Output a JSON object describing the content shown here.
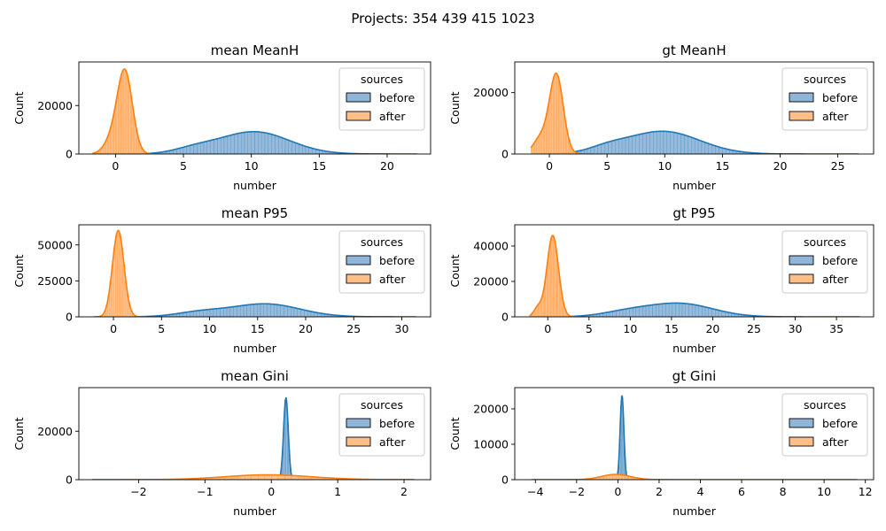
{
  "figure": {
    "suptitle": "Projects: 354 439 415 1023",
    "colors": {
      "before": "#1f77b4",
      "after": "#ff7f0e",
      "before_fill": "#8fb6d9",
      "after_fill": "#ffbf86"
    }
  },
  "chart_data": [
    {
      "type": "histogram",
      "title": "mean MeanH",
      "xlabel": "number",
      "ylabel": "Count",
      "xlim": [
        -2.7,
        23.2
      ],
      "ylim": [
        0,
        38000
      ],
      "xticks": [
        0,
        5,
        10,
        15,
        20
      ],
      "yticks": [
        0,
        20000
      ],
      "legend": {
        "title": "sources",
        "entries": [
          "before",
          "after"
        ],
        "placement": "top-right"
      },
      "series": [
        {
          "name": "before",
          "components": [
            {
              "mu": 10.2,
              "sigma": 2.6,
              "peak": 9200
            },
            {
              "mu": 5.8,
              "sigma": 1.5,
              "peak": 1800
            }
          ],
          "range": [
            -1.5,
            22.2
          ],
          "bin_width": 0.25
        },
        {
          "name": "after",
          "components": [
            {
              "mu": 0.7,
              "sigma": 0.55,
              "peak": 33000
            },
            {
              "mu": -0.2,
              "sigma": 0.6,
              "peak": 6000
            }
          ],
          "range": [
            -1.7,
            3.3
          ],
          "bin_width": 0.1
        }
      ]
    },
    {
      "type": "histogram",
      "title": "gt MeanH",
      "xlabel": "number",
      "ylabel": "Count",
      "xlim": [
        -3.0,
        28.1
      ],
      "ylim": [
        0,
        30000
      ],
      "xticks": [
        0,
        5,
        10,
        15,
        20,
        25
      ],
      "yticks": [
        0,
        20000
      ],
      "legend": {
        "title": "sources",
        "entries": [
          "before",
          "after"
        ],
        "placement": "top-right"
      },
      "series": [
        {
          "name": "before",
          "components": [
            {
              "mu": 9.8,
              "sigma": 3.2,
              "peak": 7400
            },
            {
              "mu": 5.0,
              "sigma": 1.6,
              "peak": 1400
            }
          ],
          "range": [
            -1.5,
            26.8
          ],
          "bin_width": 0.3
        },
        {
          "name": "after",
          "components": [
            {
              "mu": 0.6,
              "sigma": 0.6,
              "peak": 26000
            },
            {
              "mu": -0.8,
              "sigma": 0.6,
              "peak": 5000
            }
          ],
          "range": [
            -1.6,
            3.8
          ],
          "bin_width": 0.12
        }
      ]
    },
    {
      "type": "histogram",
      "title": "mean P95",
      "xlabel": "number",
      "ylabel": "Count",
      "xlim": [
        -3.6,
        33.0
      ],
      "ylim": [
        0,
        64000
      ],
      "xticks": [
        0,
        5,
        10,
        15,
        20,
        25,
        30
      ],
      "yticks": [
        0,
        25000,
        50000
      ],
      "legend": {
        "title": "sources",
        "entries": [
          "before",
          "after"
        ],
        "placement": "top-right"
      },
      "series": [
        {
          "name": "before",
          "components": [
            {
              "mu": 15.8,
              "sigma": 3.6,
              "peak": 9000
            },
            {
              "mu": 9.0,
              "sigma": 2.5,
              "peak": 3000
            }
          ],
          "range": [
            2.0,
            31.5
          ],
          "bin_width": 0.35
        },
        {
          "name": "after",
          "components": [
            {
              "mu": 0.5,
              "sigma": 0.6,
              "peak": 60000
            }
          ],
          "range": [
            -2.0,
            3.5
          ],
          "bin_width": 0.2
        }
      ]
    },
    {
      "type": "histogram",
      "title": "gt P95",
      "xlabel": "number",
      "ylabel": "Count",
      "xlim": [
        -4.0,
        39.5
      ],
      "ylim": [
        0,
        52000
      ],
      "xticks": [
        0,
        5,
        10,
        15,
        20,
        25,
        30,
        35
      ],
      "yticks": [
        0,
        20000,
        40000
      ],
      "legend": {
        "title": "sources",
        "entries": [
          "before",
          "after"
        ],
        "placement": "top-right"
      },
      "series": [
        {
          "name": "before",
          "components": [
            {
              "mu": 16.0,
              "sigma": 4.0,
              "peak": 7500
            },
            {
              "mu": 9.5,
              "sigma": 3.0,
              "peak": 2500
            }
          ],
          "range": [
            1.5,
            37.8
          ],
          "bin_width": 0.4
        },
        {
          "name": "after",
          "components": [
            {
              "mu": 0.6,
              "sigma": 0.7,
              "peak": 46000
            },
            {
              "mu": -1.2,
              "sigma": 0.5,
              "peak": 5000
            }
          ],
          "range": [
            -2.2,
            4.0
          ],
          "bin_width": 0.15
        }
      ]
    },
    {
      "type": "histogram",
      "title": "mean Gini",
      "xlabel": "number",
      "ylabel": "Count",
      "xlim": [
        -2.9,
        2.4
      ],
      "ylim": [
        0,
        38000
      ],
      "xticks": [
        -2,
        -1,
        0,
        1,
        2
      ],
      "yticks": [
        0,
        20000
      ],
      "legend": {
        "title": "sources",
        "entries": [
          "before",
          "after"
        ],
        "placement": "top-right"
      },
      "series": [
        {
          "name": "before",
          "components": [
            {
              "mu": 0.22,
              "sigma": 0.035,
              "peak": 34000
            }
          ],
          "range": [
            -2.7,
            2.15
          ],
          "bin_width": 0.02
        },
        {
          "name": "after",
          "components": [
            {
              "mu": -0.05,
              "sigma": 0.65,
              "peak": 2000
            }
          ],
          "range": [
            -2.7,
            2.15
          ],
          "bin_width": 0.1
        }
      ]
    },
    {
      "type": "histogram",
      "title": "gt Gini",
      "xlabel": "number",
      "ylabel": "Count",
      "xlim": [
        -5.0,
        12.4
      ],
      "ylim": [
        0,
        26000
      ],
      "xticks": [
        -4,
        -2,
        0,
        2,
        4,
        6,
        8,
        10,
        12
      ],
      "yticks": [
        0,
        10000,
        20000
      ],
      "legend": {
        "title": "sources",
        "entries": [
          "before",
          "after"
        ],
        "placement": "top-right"
      },
      "series": [
        {
          "name": "before",
          "components": [
            {
              "mu": 0.2,
              "sigma": 0.09,
              "peak": 24000
            }
          ],
          "range": [
            -4.2,
            11.6
          ],
          "bin_width": 0.06
        },
        {
          "name": "after",
          "components": [
            {
              "mu": -0.1,
              "sigma": 0.7,
              "peak": 1500
            }
          ],
          "range": [
            -2.5,
            2.5
          ],
          "bin_width": 0.15
        }
      ]
    }
  ]
}
